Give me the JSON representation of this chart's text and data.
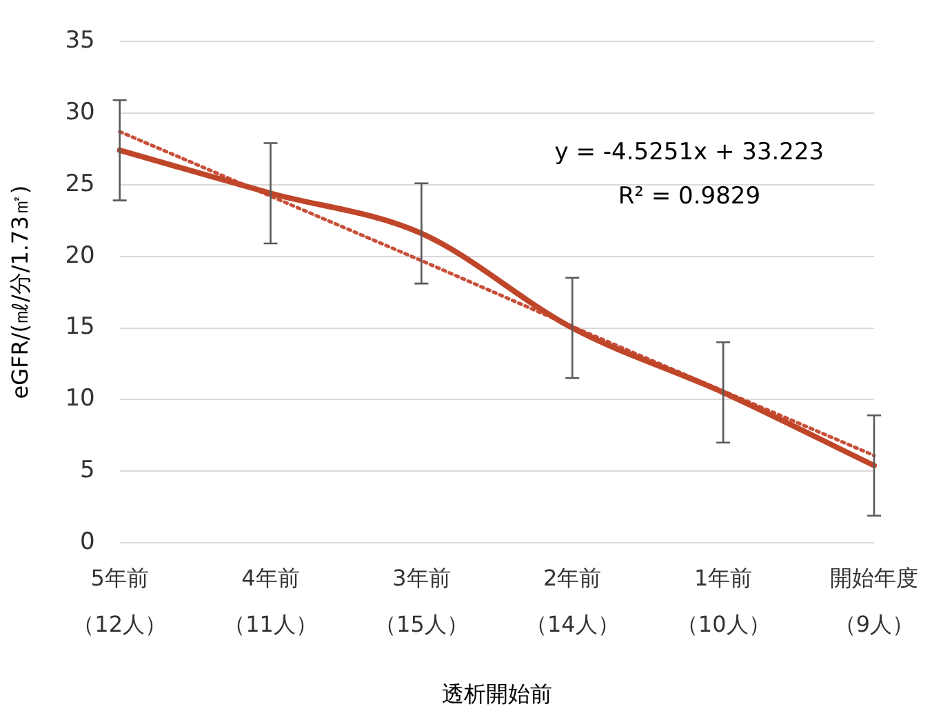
{
  "chart_data": {
    "type": "line",
    "xlabel": "透析開始前",
    "ylabel": "eGFR/(㎖/分/1.73㎡)",
    "categories": [
      "5年前（12人）",
      "4年前（11人）",
      "3年前（15人）",
      "2年前（14人）",
      "1年前（10人）",
      "開始年度（9人）"
    ],
    "series": [
      {
        "color": "#c0462a",
        "values": [
          27.4,
          24.4,
          21.6,
          15.0,
          10.5,
          5.4
        ],
        "errors": [
          3.5,
          3.5,
          3.5,
          3.5,
          3.5,
          3.5
        ],
        "line_style": "solid"
      },
      {
        "color": "#c8503a",
        "values": [
          28.7,
          24.2,
          19.7,
          15.1,
          10.6,
          6.1
        ],
        "line_style": "dotted"
      }
    ],
    "ylim": [
      0,
      35
    ],
    "yticks": [
      0,
      5,
      10,
      15,
      20,
      25,
      30,
      35
    ],
    "grid": "y",
    "legend": false,
    "marker": "none",
    "annotations": [
      "y = -4.5251x + 33.223",
      "R² = 0.9829"
    ]
  }
}
